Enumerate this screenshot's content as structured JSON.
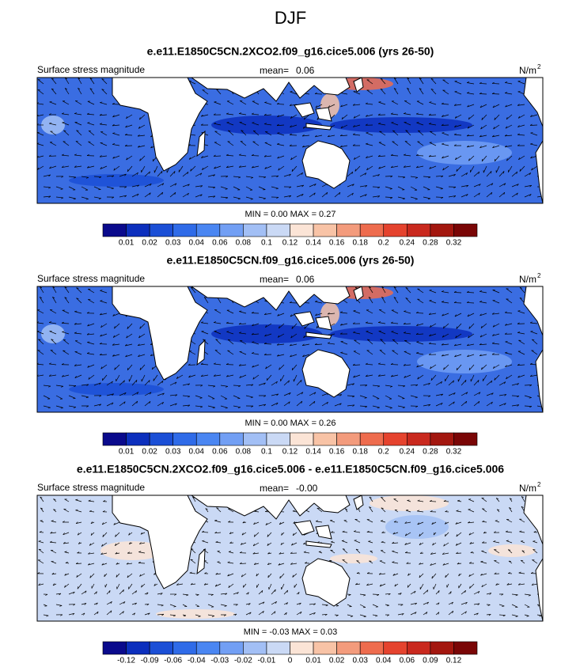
{
  "title": "DJF",
  "panels": [
    {
      "title": "e.e11.E1850C5CN.2XCO2.f09_g16.cice5.006 (yrs 26-50)",
      "left_label": "Surface stress magnitude",
      "mean_label": "mean=",
      "mean": "0.06",
      "units": "N/m",
      "units_sup": "2",
      "minmax": "MIN =  0.00 MAX =  0.27",
      "map_color": "#3a6de2",
      "colorbar": {
        "labels": [
          "0.01",
          "0.02",
          "0.03",
          "0.04",
          "0.06",
          "0.08",
          "0.1",
          "0.12",
          "0.14",
          "0.16",
          "0.18",
          "0.2",
          "0.24",
          "0.28",
          "0.32"
        ],
        "colors": [
          "#0a0a8c",
          "#0c2fbd",
          "#1b4fd6",
          "#2f6be8",
          "#4a86f2",
          "#729ff4",
          "#a2bff5",
          "#cad9f5",
          "#fbe4d6",
          "#f8c3a6",
          "#f39b7c",
          "#ee6c4e",
          "#e5432e",
          "#c9291e",
          "#a3170f",
          "#7a0606"
        ]
      }
    },
    {
      "title": "e.e11.E1850C5CN.f09_g16.cice5.006 (yrs 26-50)",
      "left_label": "Surface stress magnitude",
      "mean_label": "mean=",
      "mean": "0.06",
      "units": "N/m",
      "units_sup": "2",
      "minmax": "MIN =  0.00 MAX =  0.26",
      "map_color": "#3a6de2",
      "colorbar": {
        "labels": [
          "0.01",
          "0.02",
          "0.03",
          "0.04",
          "0.06",
          "0.08",
          "0.1",
          "0.12",
          "0.14",
          "0.16",
          "0.18",
          "0.2",
          "0.24",
          "0.28",
          "0.32"
        ],
        "colors": [
          "#0a0a8c",
          "#0c2fbd",
          "#1b4fd6",
          "#2f6be8",
          "#4a86f2",
          "#729ff4",
          "#a2bff5",
          "#cad9f5",
          "#fbe4d6",
          "#f8c3a6",
          "#f39b7c",
          "#ee6c4e",
          "#e5432e",
          "#c9291e",
          "#a3170f",
          "#7a0606"
        ]
      }
    },
    {
      "title": "e.e11.E1850C5CN.2XCO2.f09_g16.cice5.006 - e.e11.E1850C5CN.f09_g16.cice5.006",
      "left_label": "Surface stress magnitude",
      "mean_label": "mean=",
      "mean": "-0.00",
      "units": "N/m",
      "units_sup": "2",
      "minmax": "MIN = -0.03 MAX =  0.03",
      "map_color": "#cad9f5",
      "colorbar": {
        "labels": [
          "-0.12",
          "-0.09",
          "-0.06",
          "-0.04",
          "-0.03",
          "-0.02",
          "-0.01",
          "0",
          "0.01",
          "0.02",
          "0.03",
          "0.04",
          "0.06",
          "0.09",
          "0.12"
        ],
        "colors": [
          "#0a0a8c",
          "#0c2fbd",
          "#1b4fd6",
          "#2f6be8",
          "#4a86f2",
          "#729ff4",
          "#a2bff5",
          "#cad9f5",
          "#fbe4d6",
          "#f8c3a6",
          "#f39b7c",
          "#ee6c4e",
          "#e5432e",
          "#c9291e",
          "#a3170f",
          "#7a0606"
        ]
      }
    }
  ]
}
